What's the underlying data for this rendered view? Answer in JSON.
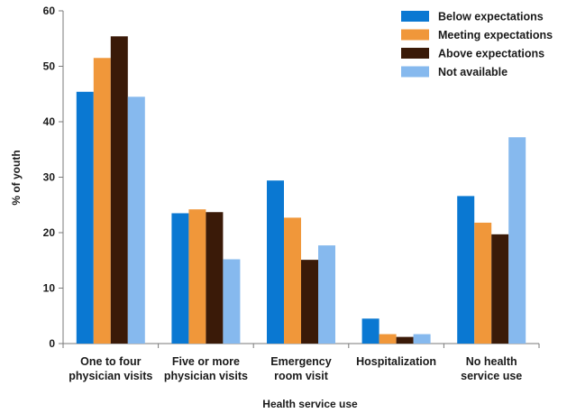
{
  "chart_data": {
    "type": "bar",
    "categories": [
      [
        "One to four",
        "physician visits"
      ],
      [
        "Five or more",
        "physician visits"
      ],
      [
        "Emergency",
        "room visit"
      ],
      [
        "Hospitalization"
      ],
      [
        "No health",
        "service use"
      ]
    ],
    "series": [
      {
        "name": "Below expectations",
        "color": "#0a78d2",
        "values": [
          45.4,
          23.5,
          29.4,
          4.5,
          26.6
        ]
      },
      {
        "name": "Meeting expectations",
        "color": "#f0973a",
        "values": [
          51.5,
          24.2,
          22.7,
          1.7,
          21.8
        ]
      },
      {
        "name": "Above expectations",
        "color": "#3a1a08",
        "values": [
          55.4,
          23.7,
          15.1,
          1.2,
          19.7
        ]
      },
      {
        "name": "Not available",
        "color": "#86b9ee",
        "values": [
          44.5,
          15.2,
          17.7,
          1.7,
          37.2
        ]
      }
    ],
    "xlabel": "Health service use",
    "ylabel": "% of youth",
    "ylim": [
      0,
      60
    ],
    "yticks": [
      0,
      10,
      20,
      30,
      40,
      50,
      60
    ],
    "grid": false,
    "legend_position": "top-right"
  }
}
